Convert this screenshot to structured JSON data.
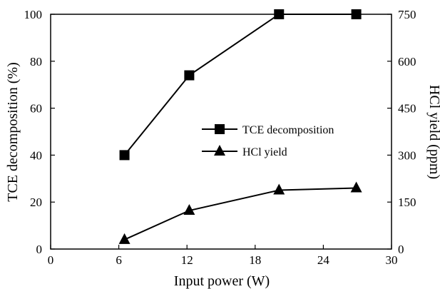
{
  "chart_data": {
    "type": "line",
    "xlabel": "Input power (W)",
    "ylabel_left": "TCE decomposition (%)",
    "ylabel_right": "HCl yield (ppm)",
    "xlim": [
      0,
      30
    ],
    "ylim_left": [
      0,
      100
    ],
    "ylim_right": [
      0,
      750
    ],
    "x_ticks": [
      "0",
      "6",
      "12",
      "18",
      "24",
      "30"
    ],
    "y_left_ticks": [
      "0",
      "20",
      "40",
      "60",
      "80",
      "100"
    ],
    "y_right_ticks": [
      "0",
      "150",
      "300",
      "450",
      "600",
      "750"
    ],
    "grid": false,
    "legend_position": "center-right",
    "series": [
      {
        "name": "TCE decomposition",
        "axis": "left",
        "marker": "square",
        "color": "#000000",
        "x": [
          6.5,
          12.2,
          20.1,
          26.9
        ],
        "y": [
          40,
          74,
          100,
          100
        ]
      },
      {
        "name": "HCl yield",
        "axis": "right",
        "marker": "triangle",
        "color": "#000000",
        "x": [
          6.5,
          12.2,
          20.1,
          26.9
        ],
        "y": [
          30,
          123,
          188,
          195
        ]
      }
    ]
  }
}
